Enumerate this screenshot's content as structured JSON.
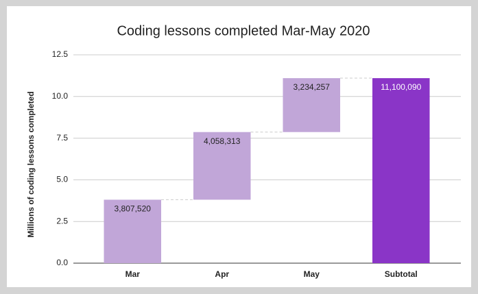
{
  "chart_data": {
    "type": "waterfall",
    "title": "Coding lessons completed Mar-May 2020",
    "y_label": "Millions of coding lessons completed",
    "categories": [
      "Mar",
      "Apr",
      "May",
      "Subtotal"
    ],
    "values": [
      3.80752,
      4.058313,
      3.234257,
      11.10009
    ],
    "value_labels": [
      "3,807,520",
      "4,058,313",
      "3,234,257",
      "11,100,090"
    ],
    "totals": [
      false,
      false,
      false,
      true
    ],
    "color": "#c1a6d8",
    "total_color": "#8a35c7",
    "ylim": [
      0,
      12.5
    ],
    "yticks": [
      {
        "value": 0,
        "label": "0.0"
      },
      {
        "value": 2.5,
        "label": "2.5"
      },
      {
        "value": 5,
        "label": "5.0"
      },
      {
        "value": 7.5,
        "label": "7.5"
      },
      {
        "value": 10,
        "label": "10.0"
      },
      {
        "value": 12.5,
        "label": "12.5"
      }
    ],
    "grid": true
  }
}
